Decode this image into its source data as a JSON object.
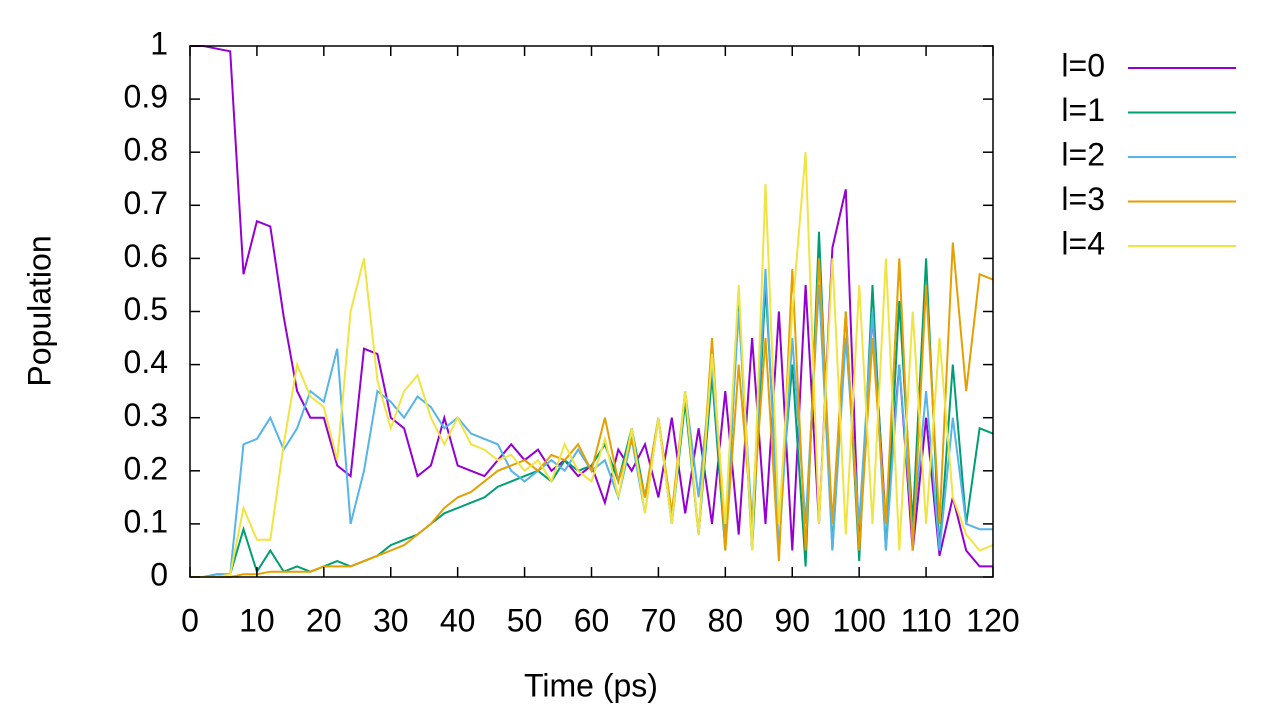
{
  "chart_data": {
    "type": "line",
    "xlabel": "Time (ps)",
    "ylabel": "Population",
    "x": [
      0,
      2,
      4,
      6,
      8,
      10,
      12,
      14,
      16,
      18,
      20,
      22,
      24,
      26,
      28,
      30,
      32,
      34,
      36,
      38,
      40,
      42,
      44,
      46,
      48,
      50,
      52,
      54,
      56,
      58,
      60,
      62,
      64,
      66,
      68,
      70,
      72,
      74,
      76,
      78,
      80,
      82,
      84,
      86,
      88,
      90,
      92,
      94,
      96,
      98,
      100,
      102,
      104,
      106,
      108,
      110,
      112,
      114,
      116,
      118,
      120
    ],
    "series": [
      {
        "name": "l=0",
        "color": "#9400d3",
        "values": [
          1,
          1,
          0.995,
          0.99,
          0.57,
          0.67,
          0.66,
          0.49,
          0.35,
          0.3,
          0.3,
          0.21,
          0.19,
          0.43,
          0.42,
          0.3,
          0.28,
          0.19,
          0.21,
          0.3,
          0.21,
          0.2,
          0.19,
          0.22,
          0.25,
          0.22,
          0.24,
          0.2,
          0.22,
          0.19,
          0.21,
          0.14,
          0.24,
          0.2,
          0.25,
          0.15,
          0.3,
          0.12,
          0.28,
          0.1,
          0.35,
          0.08,
          0.45,
          0.1,
          0.5,
          0.05,
          0.55,
          0.1,
          0.62,
          0.73,
          0.05,
          0.5,
          0.1,
          0.4,
          0.05,
          0.3,
          0.04,
          0.15,
          0.05,
          0.02,
          0.02
        ]
      },
      {
        "name": "l=1",
        "color": "#009e73",
        "values": [
          0,
          0,
          0.005,
          0.005,
          0.09,
          0.01,
          0.05,
          0.01,
          0.02,
          0.01,
          0.02,
          0.03,
          0.02,
          0.03,
          0.04,
          0.06,
          0.07,
          0.08,
          0.1,
          0.12,
          0.13,
          0.14,
          0.15,
          0.17,
          0.18,
          0.19,
          0.2,
          0.18,
          0.22,
          0.2,
          0.21,
          0.25,
          0.18,
          0.28,
          0.15,
          0.3,
          0.1,
          0.33,
          0.08,
          0.38,
          0.05,
          0.52,
          0.05,
          0.55,
          0.1,
          0.4,
          0.02,
          0.65,
          0.05,
          0.5,
          0.03,
          0.55,
          0.05,
          0.52,
          0.1,
          0.6,
          0.05,
          0.4,
          0.1,
          0.28,
          0.27
        ]
      },
      {
        "name": "l=2",
        "color": "#56b4e9",
        "values": [
          0,
          0,
          0.005,
          0.005,
          0.25,
          0.26,
          0.3,
          0.24,
          0.28,
          0.35,
          0.33,
          0.43,
          0.1,
          0.2,
          0.35,
          0.33,
          0.3,
          0.34,
          0.32,
          0.28,
          0.3,
          0.27,
          0.26,
          0.25,
          0.2,
          0.18,
          0.2,
          0.22,
          0.2,
          0.24,
          0.2,
          0.22,
          0.15,
          0.26,
          0.12,
          0.3,
          0.1,
          0.35,
          0.15,
          0.4,
          0.08,
          0.5,
          0.1,
          0.58,
          0.05,
          0.45,
          0.1,
          0.55,
          0.05,
          0.45,
          0.1,
          0.5,
          0.05,
          0.4,
          0.08,
          0.35,
          0.05,
          0.3,
          0.1,
          0.09,
          0.09
        ]
      },
      {
        "name": "l=3",
        "color": "#e69f00",
        "values": [
          0,
          0,
          0,
          0,
          0.005,
          0.005,
          0.01,
          0.01,
          0.01,
          0.01,
          0.02,
          0.02,
          0.02,
          0.03,
          0.04,
          0.05,
          0.06,
          0.08,
          0.1,
          0.13,
          0.15,
          0.16,
          0.18,
          0.2,
          0.21,
          0.22,
          0.2,
          0.23,
          0.22,
          0.25,
          0.2,
          0.3,
          0.18,
          0.26,
          0.15,
          0.3,
          0.12,
          0.35,
          0.08,
          0.45,
          0.05,
          0.4,
          0.1,
          0.45,
          0.03,
          0.58,
          0.05,
          0.6,
          0.1,
          0.5,
          0.05,
          0.45,
          0.1,
          0.6,
          0.05,
          0.55,
          0.1,
          0.63,
          0.35,
          0.57,
          0.56
        ]
      },
      {
        "name": "l=4",
        "color": "#f0e442",
        "values": [
          0,
          0,
          0,
          0.005,
          0.13,
          0.07,
          0.07,
          0.25,
          0.4,
          0.34,
          0.32,
          0.22,
          0.5,
          0.6,
          0.37,
          0.28,
          0.35,
          0.38,
          0.3,
          0.25,
          0.3,
          0.25,
          0.24,
          0.22,
          0.23,
          0.2,
          0.22,
          0.18,
          0.25,
          0.2,
          0.18,
          0.26,
          0.15,
          0.28,
          0.12,
          0.3,
          0.1,
          0.35,
          0.08,
          0.42,
          0.1,
          0.55,
          0.05,
          0.74,
          0.1,
          0.5,
          0.8,
          0.1,
          0.6,
          0.08,
          0.55,
          0.1,
          0.6,
          0.05,
          0.5,
          0.1,
          0.45,
          0.15,
          0.08,
          0.05,
          0.06
        ]
      }
    ],
    "xlim": [
      0,
      120
    ],
    "xticks": [
      0,
      10,
      20,
      30,
      40,
      50,
      60,
      70,
      80,
      90,
      100,
      110,
      120
    ],
    "ylim": [
      0,
      1
    ],
    "yticks": [
      0,
      0.1,
      0.2,
      0.3,
      0.4,
      0.5,
      0.6,
      0.7,
      0.8,
      0.9,
      1
    ],
    "legend": "outside-right"
  }
}
